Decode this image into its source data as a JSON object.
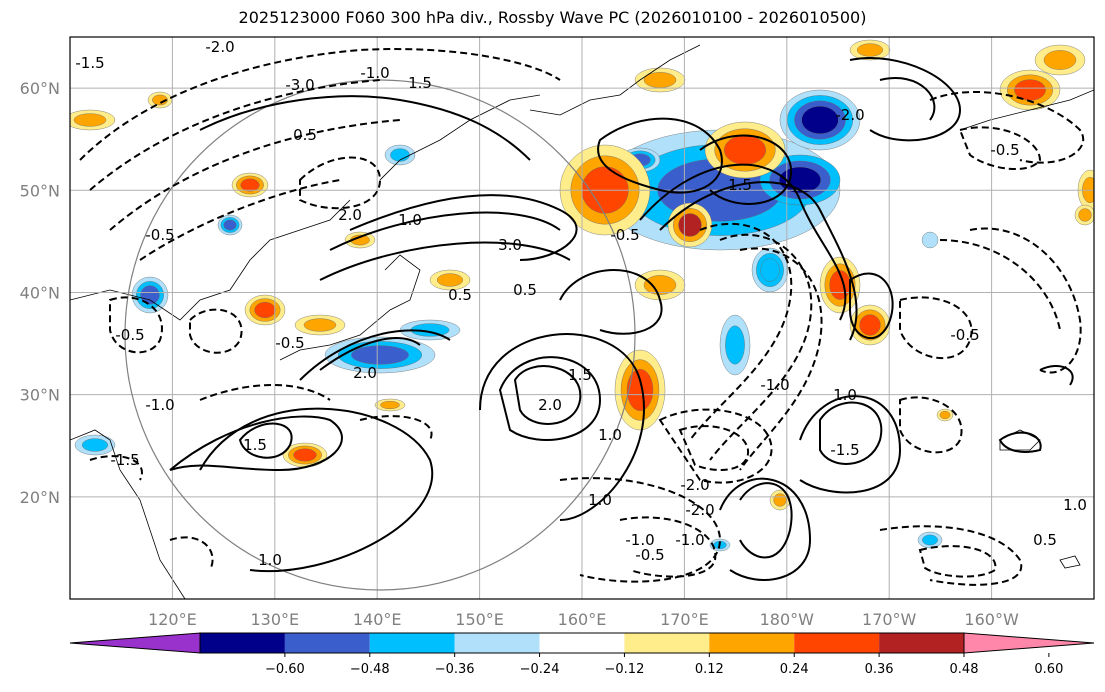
{
  "title": "2025123000 F060 300 hPa div., Rossby Wave PC (2026010100 - 2026010500)",
  "map": {
    "lat_labels": [
      "60°N",
      "50°N",
      "40°N",
      "30°N",
      "20°N"
    ],
    "lat_values": [
      60,
      50,
      40,
      30,
      20
    ],
    "lon_labels": [
      "120°E",
      "130°E",
      "140°E",
      "150°E",
      "160°E",
      "170°E",
      "180°W",
      "170°W",
      "160°W"
    ],
    "lon_values": [
      120,
      130,
      140,
      150,
      160,
      170,
      180,
      190,
      200
    ],
    "extent": {
      "lon_min": 110,
      "lon_max": 210,
      "lat_min": 10,
      "lat_max": 65
    },
    "contour_labels": [
      "-2.0",
      "-3.0",
      "-1.5",
      "-1.0",
      "0.5",
      "1.0",
      "1.5",
      "2.0",
      "3.0",
      "-0.5",
      "-0.5",
      "1.0",
      "2.0",
      "-0.5",
      "1.5",
      "-1.0",
      "-1.5",
      "-2.0",
      "1.0",
      "-0.5",
      "0.5",
      "1.5",
      "2.0",
      "-1.0",
      "-0.5",
      "0.5",
      "-2.0",
      "1.5",
      "-1.0",
      "1.0",
      "-0.5",
      "1.0",
      "-1.5",
      "-2.0",
      "-1.0",
      "-0.5",
      "0.5",
      "1.0"
    ]
  },
  "colorbar": {
    "ticks": [
      "−0.60",
      "−0.48",
      "−0.36",
      "−0.24",
      "−0.12",
      "0.12",
      "0.24",
      "0.36",
      "0.48",
      "0.60"
    ],
    "colors": [
      "#9932cc",
      "#00008b",
      "#3a5fcd",
      "#00bfff",
      "#b0e0fa",
      "#ffffff",
      "#ffec8b",
      "#ffa500",
      "#ff4500",
      "#b22222",
      "#ff88aa"
    ]
  }
}
